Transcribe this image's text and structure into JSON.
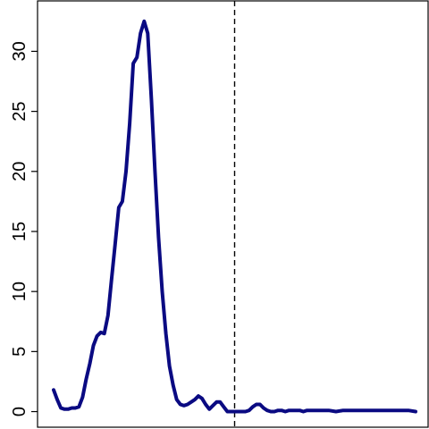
{
  "chart_data": {
    "type": "line",
    "title": "",
    "xlabel": "",
    "ylabel": "",
    "x_axis_visible": false,
    "xlim": [
      0,
      100
    ],
    "ylim": [
      -1.3,
      34.2
    ],
    "yticks": [
      0,
      5,
      10,
      15,
      20,
      25,
      30
    ],
    "ytick_labels": [
      "0",
      "5",
      "10",
      "15",
      "20",
      "25",
      "30"
    ],
    "grid": false,
    "legend": "none",
    "reference_line": {
      "x": 50,
      "style": "dashed",
      "color": "#000000"
    },
    "series": [
      {
        "color": "#0a0a82",
        "x": [
          0,
          1,
          2,
          3,
          4,
          5,
          6,
          7,
          8,
          9,
          10,
          11,
          12,
          13,
          14,
          15,
          16,
          17,
          18,
          19,
          20,
          21,
          22,
          23,
          24,
          25,
          26,
          27,
          28,
          29,
          30,
          31,
          32,
          33,
          34,
          35,
          36,
          37,
          38,
          39,
          40,
          41,
          42,
          43,
          44,
          45,
          46,
          47,
          48,
          49,
          50,
          51,
          52,
          53,
          54,
          55,
          56,
          57,
          58,
          59,
          60,
          61,
          62,
          63,
          64,
          65,
          66,
          67,
          68,
          69,
          70,
          72,
          74,
          76,
          78,
          80,
          82,
          84,
          86,
          88,
          90,
          92,
          94,
          96,
          98,
          100
        ],
        "y": [
          1.8,
          1.0,
          0.3,
          0.2,
          0.2,
          0.3,
          0.3,
          0.4,
          1.2,
          2.7,
          4.0,
          5.5,
          6.3,
          6.6,
          6.5,
          8.0,
          11.0,
          14.0,
          17.0,
          17.5,
          20.0,
          24.0,
          29.0,
          29.5,
          31.5,
          32.5,
          31.5,
          26.0,
          20.0,
          14.5,
          10.0,
          6.5,
          3.8,
          2.2,
          1.0,
          0.6,
          0.5,
          0.6,
          0.8,
          1.0,
          1.3,
          1.1,
          0.6,
          0.2,
          0.5,
          0.8,
          0.8,
          0.4,
          0.0,
          0.0,
          0.0,
          0.0,
          0.0,
          0.0,
          0.1,
          0.4,
          0.6,
          0.6,
          0.3,
          0.1,
          0.0,
          0.0,
          0.1,
          0.1,
          0.0,
          0.1,
          0.1,
          0.1,
          0.1,
          0.0,
          0.1,
          0.1,
          0.1,
          0.1,
          0.0,
          0.1,
          0.1,
          0.1,
          0.1,
          0.1,
          0.1,
          0.1,
          0.1,
          0.1,
          0.1,
          0.0
        ]
      }
    ]
  }
}
